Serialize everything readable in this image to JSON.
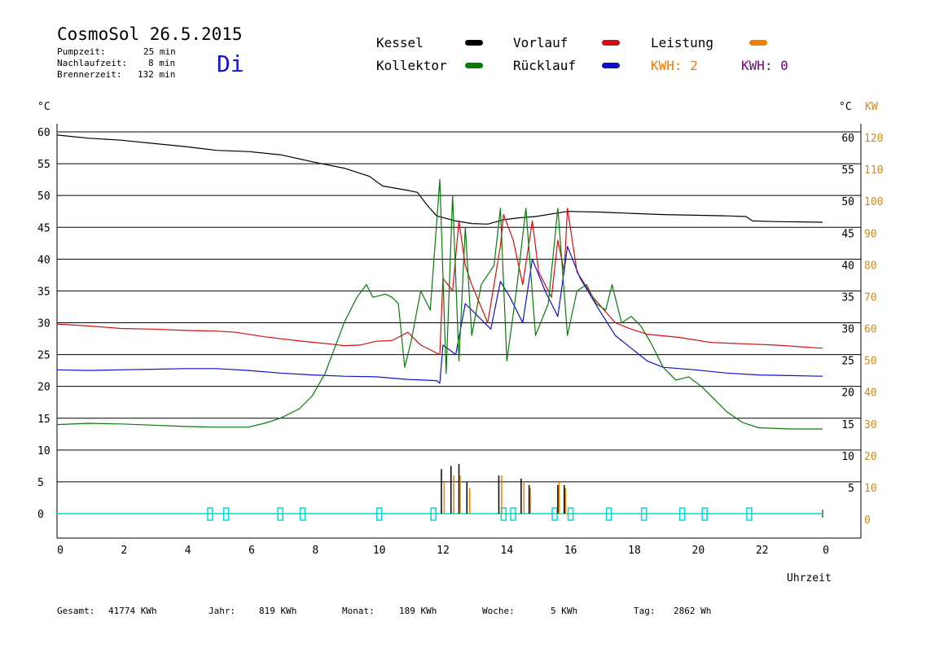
{
  "header": {
    "title": "CosmoSol 26.5.2015",
    "day": "Di",
    "stats": [
      {
        "label": "Pumpzeit:",
        "value": "25 min"
      },
      {
        "label": "Nachlaufzeit:",
        "value": "8 min"
      },
      {
        "label": "Brennerzeit:",
        "value": "132 min"
      }
    ]
  },
  "legend": {
    "kessel": "Kessel",
    "kollektor": "Kollektor",
    "vorlauf": "Vorlauf",
    "ruecklauf": "Rücklauf",
    "leistung": "Leistung",
    "kwh_orange": "KWH: 2",
    "kwh_purple": "KWH: 0"
  },
  "colors": {
    "kessel": "#000000",
    "kollektor": "#0a7a0a",
    "vorlauf": "#d01010",
    "ruecklauf": "#1010c8",
    "leistung": "#f08000",
    "kwh_purple": "#800080",
    "pump": "#00d8d8",
    "axis_right_kw": "#d08a20"
  },
  "footer": {
    "gesamt_label": "Gesamt:",
    "gesamt_value": "41774 KWh",
    "jahr_label": "Jahr:",
    "jahr_value": "819 KWh",
    "monat_label": "Monat:",
    "monat_value": "189 KWh",
    "woche_label": "Woche:",
    "woche_value": "5 KWh",
    "tag_label": "Tag:",
    "tag_value": "2862 Wh"
  },
  "chart_data": {
    "type": "line",
    "xlabel": "Uhrzeit",
    "ylabel_left": "°C",
    "ylabel_right": "°C",
    "ylabel_right_kw": "KW",
    "xlim": [
      0,
      24
    ],
    "ylim": [
      0,
      60
    ],
    "ylim_kw": [
      0,
      120
    ],
    "x_ticks": [
      "0",
      "2",
      "4",
      "6",
      "8",
      "10",
      "12",
      "14",
      "16",
      "18",
      "20",
      "22",
      "0"
    ],
    "y_ticks": [
      0,
      5,
      10,
      15,
      20,
      25,
      30,
      35,
      40,
      45,
      50,
      55,
      60
    ],
    "y_ticks_right": [
      5,
      10,
      15,
      20,
      25,
      30,
      35,
      40,
      45,
      50,
      55,
      60
    ],
    "kw_ticks": [
      0,
      10,
      20,
      30,
      40,
      50,
      60,
      70,
      80,
      90,
      100,
      110,
      120
    ],
    "grid": "horizontal",
    "series": [
      {
        "name": "Kessel",
        "color": "#000000",
        "points": [
          [
            0,
            59.5
          ],
          [
            1,
            59
          ],
          [
            2,
            58.7
          ],
          [
            3,
            58.2
          ],
          [
            4,
            57.7
          ],
          [
            5,
            57.1
          ],
          [
            6,
            56.9
          ],
          [
            7,
            56.4
          ],
          [
            8,
            55.3
          ],
          [
            9,
            54.3
          ],
          [
            9.8,
            53
          ],
          [
            10.2,
            51.5
          ],
          [
            11,
            50.8
          ],
          [
            11.3,
            50.5
          ],
          [
            11.6,
            48.5
          ],
          [
            11.9,
            46.8
          ],
          [
            12.5,
            46
          ],
          [
            13,
            45.6
          ],
          [
            13.5,
            45.5
          ],
          [
            14,
            46.2
          ],
          [
            14.5,
            46.5
          ],
          [
            15,
            46.7
          ],
          [
            16,
            47.5
          ],
          [
            17,
            47.4
          ],
          [
            18,
            47.2
          ],
          [
            19,
            47
          ],
          [
            20,
            46.9
          ],
          [
            21,
            46.8
          ],
          [
            21.6,
            46.7
          ],
          [
            21.8,
            46
          ],
          [
            22.5,
            45.9
          ],
          [
            24,
            45.8
          ]
        ]
      },
      {
        "name": "Vorlauf",
        "color": "#d01010",
        "points": [
          [
            0,
            29.8
          ],
          [
            1,
            29.5
          ],
          [
            2,
            29.1
          ],
          [
            3,
            29
          ],
          [
            4,
            28.8
          ],
          [
            5,
            28.7
          ],
          [
            5.6,
            28.5
          ],
          [
            6.5,
            27.8
          ],
          [
            7.5,
            27.2
          ],
          [
            8.5,
            26.7
          ],
          [
            9,
            26.4
          ],
          [
            9.5,
            26.5
          ],
          [
            10,
            27.1
          ],
          [
            10.5,
            27.2
          ],
          [
            11,
            28.5
          ],
          [
            11.4,
            26.5
          ],
          [
            12,
            25
          ],
          [
            12.1,
            37
          ],
          [
            12.4,
            35
          ],
          [
            12.6,
            46
          ],
          [
            12.8,
            39
          ],
          [
            13,
            36
          ],
          [
            13.5,
            30
          ],
          [
            13.9,
            42
          ],
          [
            14,
            47
          ],
          [
            14.3,
            43
          ],
          [
            14.6,
            36
          ],
          [
            14.9,
            46
          ],
          [
            15.1,
            38
          ],
          [
            15.5,
            34
          ],
          [
            15.7,
            43
          ],
          [
            15.9,
            38
          ],
          [
            16,
            48
          ],
          [
            16.3,
            38
          ],
          [
            16.8,
            34
          ],
          [
            17.5,
            30
          ],
          [
            18,
            29
          ],
          [
            18.5,
            28.2
          ],
          [
            19.5,
            27.7
          ],
          [
            20.5,
            26.9
          ],
          [
            21.5,
            26.7
          ],
          [
            22.5,
            26.5
          ],
          [
            24,
            26
          ]
        ]
      },
      {
        "name": "Rücklauf",
        "color": "#1010c8",
        "points": [
          [
            0,
            22.6
          ],
          [
            1,
            22.5
          ],
          [
            2,
            22.6
          ],
          [
            3,
            22.7
          ],
          [
            4,
            22.8
          ],
          [
            5,
            22.8
          ],
          [
            6,
            22.5
          ],
          [
            7,
            22.1
          ],
          [
            8,
            21.8
          ],
          [
            9,
            21.6
          ],
          [
            10,
            21.5
          ],
          [
            11,
            21.1
          ],
          [
            11.9,
            20.9
          ],
          [
            12,
            20.5
          ],
          [
            12.1,
            26.5
          ],
          [
            12.5,
            25
          ],
          [
            12.8,
            33
          ],
          [
            13.2,
            31
          ],
          [
            13.6,
            29
          ],
          [
            13.9,
            36.5
          ],
          [
            14.2,
            34
          ],
          [
            14.6,
            30
          ],
          [
            14.9,
            40
          ],
          [
            15.3,
            35
          ],
          [
            15.7,
            31
          ],
          [
            16,
            42
          ],
          [
            16.4,
            37
          ],
          [
            17,
            32
          ],
          [
            17.5,
            28
          ],
          [
            18,
            26
          ],
          [
            18.5,
            24
          ],
          [
            19,
            23
          ],
          [
            20,
            22.6
          ],
          [
            21,
            22.1
          ],
          [
            22,
            21.8
          ],
          [
            23,
            21.7
          ],
          [
            24,
            21.6
          ]
        ]
      },
      {
        "name": "Kollektor",
        "color": "#0a7a0a",
        "points": [
          [
            0,
            14
          ],
          [
            1,
            14.2
          ],
          [
            2,
            14.1
          ],
          [
            3,
            13.9
          ],
          [
            4,
            13.7
          ],
          [
            5,
            13.6
          ],
          [
            6,
            13.6
          ],
          [
            6.5,
            14.2
          ],
          [
            7,
            15
          ],
          [
            7.6,
            16.5
          ],
          [
            8,
            18.5
          ],
          [
            8.4,
            22
          ],
          [
            8.7,
            26
          ],
          [
            9,
            30
          ],
          [
            9.4,
            34
          ],
          [
            9.7,
            36
          ],
          [
            9.9,
            34
          ],
          [
            10.3,
            34.5
          ],
          [
            10.5,
            34
          ],
          [
            10.7,
            33
          ],
          [
            10.9,
            23
          ],
          [
            11.1,
            27
          ],
          [
            11.4,
            35
          ],
          [
            11.7,
            32
          ],
          [
            12,
            52.5
          ],
          [
            12.2,
            22
          ],
          [
            12.4,
            50
          ],
          [
            12.6,
            24
          ],
          [
            12.8,
            45
          ],
          [
            13,
            28
          ],
          [
            13.3,
            36
          ],
          [
            13.7,
            39
          ],
          [
            13.9,
            48
          ],
          [
            14.1,
            24
          ],
          [
            14.4,
            35
          ],
          [
            14.7,
            48
          ],
          [
            15,
            28
          ],
          [
            15.4,
            33
          ],
          [
            15.7,
            48
          ],
          [
            16,
            28
          ],
          [
            16.3,
            35
          ],
          [
            16.6,
            36
          ],
          [
            16.9,
            33
          ],
          [
            17.2,
            32
          ],
          [
            17.4,
            36
          ],
          [
            17.7,
            30
          ],
          [
            18,
            31
          ],
          [
            18.3,
            29.5
          ],
          [
            18.6,
            27
          ],
          [
            19,
            23
          ],
          [
            19.4,
            21
          ],
          [
            19.8,
            21.5
          ],
          [
            20.2,
            20
          ],
          [
            20.6,
            18
          ],
          [
            21,
            16
          ],
          [
            21.5,
            14.3
          ],
          [
            22,
            13.5
          ],
          [
            23,
            13.3
          ],
          [
            24,
            13.3
          ]
        ]
      }
    ],
    "leistung_kw": {
      "name": "Leistung",
      "color": "#f08000",
      "x": [
        12.1,
        12.4,
        12.6,
        12.9,
        13.9,
        14.6,
        14.8,
        15.7,
        15.9
      ],
      "values": [
        10,
        12,
        12,
        8,
        12,
        10,
        8,
        10,
        8
      ]
    },
    "peaks_black": {
      "x": [
        12.05,
        12.35,
        12.6,
        12.85,
        13.85,
        14.55,
        14.8,
        15.7,
        15.9
      ],
      "values": [
        7,
        7.5,
        7.8,
        5,
        6,
        5.5,
        4.5,
        4.5,
        4.5
      ]
    },
    "pump_events": {
      "color": "#00d8d8",
      "x": [
        4.8,
        5.3,
        7.0,
        7.7,
        10.1,
        11.8,
        14.0,
        14.3,
        15.6,
        16.1,
        17.3,
        18.4,
        19.6,
        20.3,
        21.7
      ]
    }
  }
}
